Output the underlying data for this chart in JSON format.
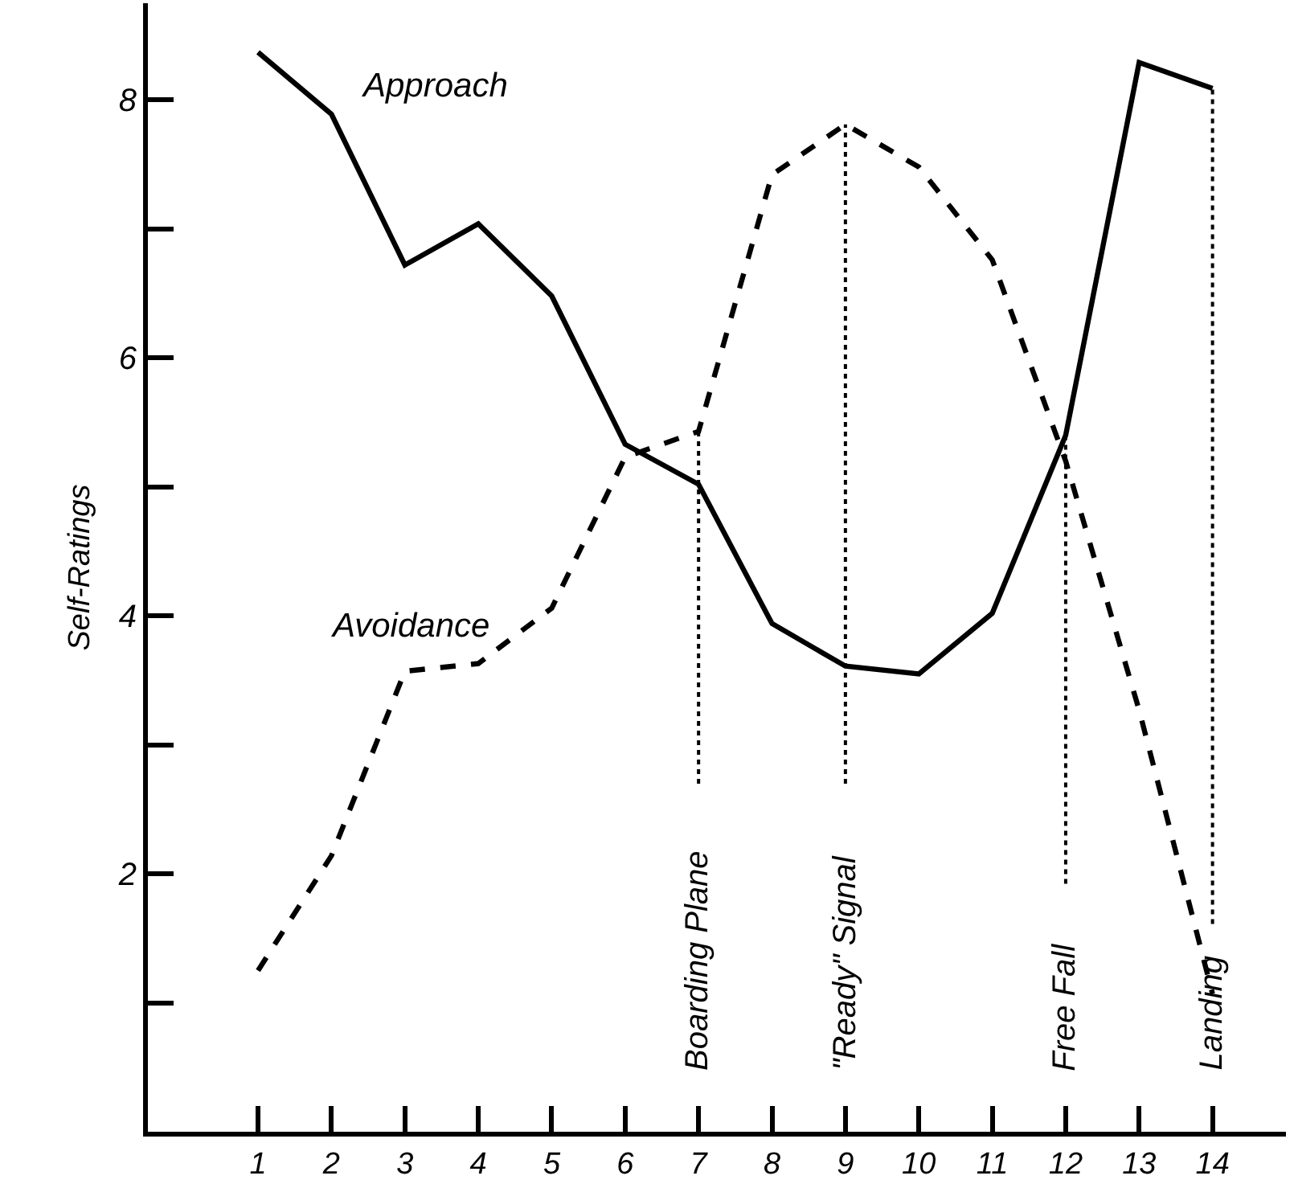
{
  "chart_data": {
    "type": "line",
    "ylabel": "Self-Ratings",
    "x": [
      1,
      2,
      3,
      4,
      5,
      6,
      7,
      8,
      9,
      10,
      11,
      12,
      13,
      14
    ],
    "series": [
      {
        "name": "Approach",
        "color": "#000000",
        "line_style": "solid",
        "values": [
          8.37,
          7.89,
          6.72,
          7.04,
          6.48,
          5.33,
          5.02,
          3.94,
          3.61,
          3.55,
          4.02,
          5.4,
          8.29,
          8.09
        ]
      },
      {
        "name": "Avoidance",
        "color": "#000000",
        "line_style": "dashed",
        "values": [
          1.25,
          2.14,
          3.57,
          3.63,
          4.06,
          5.23,
          5.43,
          7.42,
          7.81,
          7.48,
          6.76,
          5.2,
          3.27,
          1.07
        ]
      }
    ],
    "ref_lines": [
      {
        "axis": "x",
        "value": 7,
        "label": "Boarding Plane",
        "line_style": "dotted"
      },
      {
        "axis": "x",
        "value": 9,
        "label": "\"Ready\" Signal",
        "line_style": "dotted"
      },
      {
        "axis": "x",
        "value": 12,
        "label": "Free Fall",
        "line_style": "dotted"
      },
      {
        "axis": "x",
        "value": 14,
        "label": "Landing",
        "line_style": "dotted"
      }
    ],
    "xlim": [
      -0.5,
      15
    ],
    "xticks": [
      1,
      2,
      3,
      4,
      5,
      6,
      7,
      8,
      9,
      10,
      11,
      12,
      13,
      14
    ],
    "ylim": [
      0,
      8.75
    ],
    "yticks": [
      {
        "value": 1,
        "label": null
      },
      2,
      {
        "value": 3,
        "label": null
      },
      4,
      {
        "value": 5,
        "label": null
      },
      6,
      {
        "value": 7,
        "label": null
      },
      8
    ],
    "grid": false,
    "legend": false,
    "marker": "none"
  }
}
